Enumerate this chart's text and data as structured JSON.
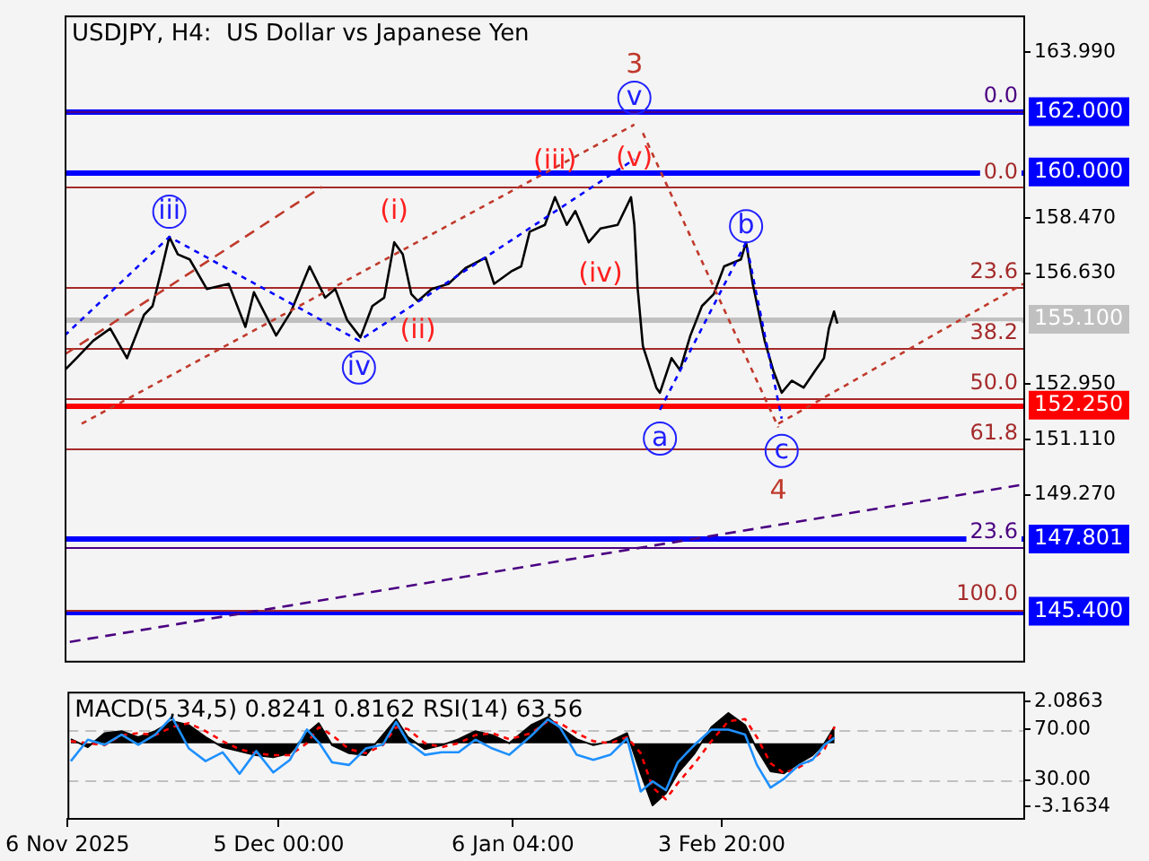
{
  "chart_data": [
    {
      "type": "line",
      "title": "USDJPY, H4:  US Dollar vs Japanese Yen",
      "xlim": [
        "2025-11-06T00:00",
        "2026-03-17T06:00"
      ],
      "ylim": [
        143.75,
        165.2
      ],
      "yticks": [
        {
          "value": 163.99,
          "label": "163.990"
        },
        {
          "value": 158.47,
          "label": "158.470"
        },
        {
          "value": 156.63,
          "label": "156.630"
        },
        {
          "value": 152.95,
          "label": "152.950"
        },
        {
          "value": 151.11,
          "label": "151.110"
        },
        {
          "value": 149.27,
          "label": "149.270"
        }
      ],
      "tick_labels": "y",
      "grid": false,
      "legend": false,
      "marker": "none",
      "series": [
        {
          "color": "#000000",
          "x": [
            "2025-11-06T00:00",
            "2025-11-07T15:00",
            "2025-11-09T22:00",
            "2025-11-12T06:00",
            "2025-11-14T13:00",
            "2025-11-16T21:00",
            "2025-11-18T01:00",
            "2025-11-19T05:00",
            "2025-11-20T08:00",
            "2025-11-21T12:00",
            "2025-11-23T03:00",
            "2025-11-25T11:00",
            "2025-11-28T11:00",
            "2025-11-30T18:00",
            "2025-12-01T22:00",
            "2025-12-04T23:00",
            "2025-12-07T00:00",
            "2025-12-09T13:00",
            "2025-12-11T16:00",
            "2025-12-13T01:00",
            "2025-12-14T16:00",
            "2025-12-16T12:00",
            "2025-12-18T03:00",
            "2025-12-19T18:00",
            "2025-12-21T03:00",
            "2025-12-22T07:00",
            "2025-12-23T11:00",
            "2025-12-24T09:00",
            "2025-12-26T06:00",
            "2025-12-28T13:00",
            "2025-12-30T21:00",
            "2026-01-02T15:00",
            "2026-01-03T19:00",
            "2026-01-06T03:00",
            "2026-01-07T12:00",
            "2026-01-08T16:00",
            "2026-01-10T18:00",
            "2026-01-12T03:00",
            "2026-01-13T18:00",
            "2026-01-14T22:00",
            "2026-01-16T18:00",
            "2026-01-18T09:00",
            "2026-01-20T17:00",
            "2026-01-22T13:00",
            "2026-01-23T00:00",
            "2026-01-23T11:00",
            "2026-01-24T04:00",
            "2026-01-26T00:00",
            "2026-01-26T12:00",
            "2026-01-28T02:00",
            "2026-01-29T06:00",
            "2026-01-30T16:00",
            "2026-02-01T06:00",
            "2026-02-02T21:00",
            "2026-02-04T07:00",
            "2026-02-06T14:00",
            "2026-02-07T07:00",
            "2026-02-08T05:00",
            "2026-02-09T20:00",
            "2026-02-11T00:00",
            "2026-02-12T04:00",
            "2026-02-13T13:00",
            "2026-02-15T04:00",
            "2026-02-16T19:00",
            "2026-02-17T23:00",
            "2026-02-18T15:00",
            "2026-02-19T08:00",
            "2026-02-19T19:00"
          ],
          "values": [
            153.41,
            153.81,
            154.39,
            154.79,
            153.81,
            155.25,
            155.54,
            156.69,
            157.84,
            157.26,
            157.09,
            156.11,
            156.28,
            154.85,
            156.0,
            154.56,
            155.36,
            156.86,
            155.82,
            156.11,
            155.08,
            154.5,
            155.54,
            155.82,
            157.66,
            157.26,
            155.94,
            155.71,
            156.11,
            156.28,
            156.8,
            157.15,
            156.28,
            156.69,
            156.86,
            158.01,
            158.24,
            159.16,
            158.24,
            158.7,
            157.66,
            158.12,
            158.24,
            159.16,
            158.24,
            156.11,
            154.21,
            152.83,
            152.66,
            153.81,
            153.41,
            154.56,
            155.54,
            155.94,
            156.86,
            157.09,
            157.66,
            156.28,
            154.39,
            153.41,
            152.66,
            153.06,
            152.83,
            153.41,
            153.81,
            154.79,
            155.36,
            154.96
          ]
        },
        {
          "type": "line",
          "color": "#4b0082",
          "line_style": "dashed",
          "x": [
            "2025-11-06T17:00",
            "2026-03-17T06:00"
          ],
          "values": [
            144.38,
            149.61
          ]
        },
        {
          "type": "line",
          "color": "#c0392b",
          "line_style": "dashed",
          "x": [
            "2025-11-06T00:00",
            "2025-12-11T05:00"
          ],
          "values": [
            153.93,
            159.5
          ]
        },
        {
          "type": "line",
          "color": "#c0392b",
          "line_style": "dotted",
          "x": [
            "2025-11-08T08:00",
            "2026-01-23T00:00"
          ],
          "values": [
            151.63,
            161.57
          ]
        },
        {
          "type": "line",
          "color": "#c0392b",
          "line_style": "dotted",
          "x": [
            "2026-01-24T04:00",
            "2026-02-11T17:00"
          ],
          "values": [
            161.29,
            151.51
          ]
        },
        {
          "type": "line",
          "color": "#c0392b",
          "line_style": "dotted",
          "x": [
            "2026-02-11T17:00",
            "2026-03-17T06:00"
          ],
          "values": [
            151.63,
            156.28
          ]
        },
        {
          "type": "line",
          "color": "#0000ff",
          "line_style": "dotted",
          "x": [
            "2025-11-06T00:00",
            "2025-11-20T08:00",
            "2025-12-16T07:00",
            "2026-01-23T00:00"
          ],
          "values": [
            154.56,
            157.84,
            154.39,
            160.42
          ]
        },
        {
          "type": "line",
          "color": "#0000ff",
          "line_style": "dotted",
          "x": [
            "2026-01-26T12:00",
            "2026-02-07T07:00",
            "2026-02-12T04:00"
          ],
          "values": [
            152.09,
            157.66,
            151.8
          ]
        }
      ],
      "ref_lines": [
        {
          "axis": "y",
          "value": 162.0,
          "label": "162.000",
          "color": "#0000ff"
        },
        {
          "axis": "y",
          "value": 160.0,
          "label": "160.000",
          "color": "#0000ff"
        },
        {
          "axis": "y",
          "value": 155.1,
          "label": "155.100",
          "color": "#c0c0c0"
        },
        {
          "axis": "y",
          "value": 152.25,
          "label": "152.250",
          "color": "#ff0000"
        },
        {
          "axis": "y",
          "value": 147.801,
          "label": "147.801",
          "color": "#0000ff"
        },
        {
          "axis": "y",
          "value": 145.4,
          "label": "145.400",
          "color": "#0000ff"
        },
        {
          "axis": "y",
          "value": 159.5,
          "color": "#a52a2a"
        },
        {
          "axis": "y",
          "value": 156.19,
          "color": "#a52a2a"
        },
        {
          "axis": "y",
          "value": 154.14,
          "color": "#a52a2a"
        },
        {
          "axis": "y",
          "value": 152.49,
          "color": "#a52a2a"
        },
        {
          "axis": "y",
          "value": 150.83,
          "color": "#a52a2a"
        },
        {
          "axis": "y",
          "value": 145.47,
          "color": "#a52a2a"
        },
        {
          "axis": "y",
          "value": 162.03,
          "color": "#4b0082"
        },
        {
          "axis": "y",
          "value": 147.54,
          "color": "#4b0082"
        }
      ],
      "annotations": [
        {
          "text": "iii",
          "x": "2025-11-20T08:00",
          "y": 157.84
        },
        {
          "text": "iv",
          "x": "2025-12-16T07:00",
          "y": 154.39
        },
        {
          "text": "v",
          "x": "2026-01-23T00:00",
          "y": 161.57
        },
        {
          "text": "a",
          "x": "2026-01-26T12:00",
          "y": 152.09
        },
        {
          "text": "b",
          "x": "2026-02-07T07:00",
          "y": 157.66
        },
        {
          "text": "c",
          "x": "2026-02-12T04:00",
          "y": 151.8
        },
        {
          "text": "(i)",
          "x": "2025-12-21T03:00",
          "y": 157.66
        },
        {
          "text": "(ii)",
          "x": "2025-12-24T09:00",
          "y": 155.71
        },
        {
          "text": "(iii)",
          "x": "2026-01-12T03:00",
          "y": 159.16
        },
        {
          "text": "(iv)",
          "x": "2026-01-18T09:00",
          "y": 158.12
        },
        {
          "text": "(v)",
          "x": "2026-01-23T00:00",
          "y": 160.42
        },
        {
          "text": "3",
          "x": "2026-01-23T00:00",
          "y": 161.57
        },
        {
          "text": "4",
          "x": "2026-02-11T17:00",
          "y": 151.51
        },
        {
          "text": "0.0",
          "x": "2026-03-17T06:00",
          "y": 159.5
        },
        {
          "text": "23.6",
          "x": "2026-03-17T06:00",
          "y": 156.19
        },
        {
          "text": "38.2",
          "x": "2026-03-17T06:00",
          "y": 154.14
        },
        {
          "text": "50.0",
          "x": "2026-03-17T06:00",
          "y": 152.49
        },
        {
          "text": "61.8",
          "x": "2026-03-17T06:00",
          "y": 150.83
        },
        {
          "text": "100.0",
          "x": "2026-03-17T06:00",
          "y": 145.47
        },
        {
          "text": "0.0",
          "x": "2026-03-17T06:00",
          "y": 162.03
        },
        {
          "text": "23.6",
          "x": "2026-03-17T06:00",
          "y": 147.54
        }
      ]
    },
    {
      "type": "line",
      "title": "MACD(5,34,5) 0.8241 0.8162 RSI(14) 63.56",
      "xlim": [
        "2025-11-06T00:00",
        "2026-03-17T06:00"
      ],
      "xticks": [
        {
          "value": "2025-11-06T00:00",
          "label": "6 Nov 2025"
        },
        {
          "value": "2025-12-05T00:00",
          "label": "5 Dec 00:00"
        },
        {
          "value": "2026-01-06T04:00",
          "label": "6 Jan 04:00"
        },
        {
          "value": "2026-02-03T20:00",
          "label": "3 Feb 20:00"
        }
      ],
      "ylim": [
        -3.73,
        2.57
      ],
      "yticks": [
        2.0863,
        -3.1634
      ],
      "y2lim": [
        0,
        100
      ],
      "y2ticks": [
        {
          "value": 70,
          "label": "70.00"
        },
        {
          "value": 30,
          "label": "30.00"
        }
      ],
      "grid": false,
      "legend": false,
      "marker": "none",
      "series": [
        {
          "type": "area",
          "color": "#000000",
          "x": [
            "2025-11-06T11:00",
            "2025-11-08T19:00",
            "2025-11-11T02:00",
            "2025-11-13T10:00",
            "2025-11-15T17:00",
            "2025-11-18T01:00",
            "2025-11-20T08:00",
            "2025-11-22T16:00",
            "2025-11-24T23:00",
            "2025-11-27T07:00",
            "2025-11-29T15:00",
            "2025-12-01T22:00",
            "2025-12-04T06:00",
            "2025-12-06T13:00",
            "2025-12-08T21:00",
            "2025-12-10T12:00",
            "2025-12-12T08:00",
            "2025-12-14T16:00",
            "2025-12-16T23:00",
            "2025-12-19T07:00",
            "2025-12-21T03:00",
            "2025-12-22T18:00",
            "2025-12-25T02:00",
            "2025-12-27T09:00",
            "2025-12-29T17:00",
            "2026-01-01T00:00",
            "2026-01-03T08:00",
            "2026-01-05T16:00",
            "2026-01-08T16:00",
            "2026-01-10T23:00",
            "2026-01-12T14:00",
            "2026-01-14T22:00",
            "2026-01-17T05:00",
            "2026-01-19T13:00",
            "2026-01-21T20:00",
            "2026-01-23T17:00",
            "2026-01-25T08:00",
            "2026-01-27T04:00",
            "2026-01-28T19:00",
            "2026-01-31T03:00",
            "2026-02-02T10:00",
            "2026-02-04T18:00",
            "2026-02-07T01:00",
            "2026-02-08T16:00",
            "2026-02-10T13:00",
            "2026-02-12T09:00",
            "2026-02-14T11:00",
            "2026-02-16T07:00",
            "2026-02-17T23:00",
            "2026-02-19T08:00"
          ],
          "values": [
            0.2,
            -0.2,
            0.5,
            0.6,
            0.3,
            0.6,
            1.1,
            0.9,
            0.3,
            -0.2,
            -0.4,
            -0.6,
            -0.7,
            -0.5,
            0.5,
            1.0,
            -0.1,
            -0.5,
            -0.6,
            0.4,
            1.2,
            0.3,
            -0.3,
            -0.1,
            0.2,
            0.6,
            0.4,
            0.0,
            0.9,
            1.3,
            0.8,
            0.2,
            -0.1,
            0.1,
            0.5,
            -1.5,
            -3.1,
            -2.5,
            -1.5,
            -0.5,
            0.8,
            1.5,
            0.9,
            -0.3,
            -1.4,
            -1.5,
            -1.0,
            -0.6,
            0.0,
            0.8241
          ]
        },
        {
          "color": "#ff0000",
          "line_style": "dotted",
          "x": [
            "2025-11-06T11:00",
            "2025-11-08T19:00",
            "2025-11-11T02:00",
            "2025-11-13T10:00",
            "2025-11-15T17:00",
            "2025-11-18T01:00",
            "2025-11-20T08:00",
            "2025-11-22T16:00",
            "2025-11-24T23:00",
            "2025-11-27T07:00",
            "2025-11-29T15:00",
            "2025-12-01T22:00",
            "2025-12-04T06:00",
            "2025-12-06T13:00",
            "2025-12-08T21:00",
            "2025-12-10T12:00",
            "2025-12-12T08:00",
            "2025-12-14T16:00",
            "2025-12-16T23:00",
            "2025-12-19T07:00",
            "2025-12-21T03:00",
            "2025-12-22T18:00",
            "2025-12-25T02:00",
            "2025-12-27T09:00",
            "2025-12-29T17:00",
            "2026-01-01T00:00",
            "2026-01-03T08:00",
            "2026-01-05T16:00",
            "2026-01-08T16:00",
            "2026-01-10T23:00",
            "2026-01-12T14:00",
            "2026-01-14T22:00",
            "2026-01-17T05:00",
            "2026-01-19T13:00",
            "2026-01-21T20:00",
            "2026-01-23T17:00",
            "2026-01-25T08:00",
            "2026-01-27T04:00",
            "2026-01-28T19:00",
            "2026-01-31T03:00",
            "2026-02-02T10:00",
            "2026-02-04T18:00",
            "2026-02-07T01:00",
            "2026-02-08T16:00",
            "2026-02-10T13:00",
            "2026-02-12T09:00",
            "2026-02-14T11:00",
            "2026-02-16T07:00",
            "2026-02-17T23:00",
            "2026-02-19T08:00"
          ],
          "values": [
            0.1,
            0.0,
            -0.1,
            0.4,
            0.5,
            0.4,
            0.8,
            1.0,
            0.6,
            0.1,
            -0.3,
            -0.5,
            -0.6,
            -0.6,
            0.0,
            0.8,
            0.4,
            -0.3,
            -0.5,
            -0.1,
            0.8,
            0.7,
            0.0,
            -0.2,
            0.0,
            0.4,
            0.5,
            0.2,
            0.5,
            1.1,
            1.0,
            0.5,
            0.1,
            0.0,
            0.3,
            -0.5,
            -2.2,
            -2.8,
            -2.0,
            -1.0,
            0.1,
            1.1,
            1.2,
            0.3,
            -1.0,
            -1.5,
            -1.2,
            -0.8,
            -0.3,
            0.8162
          ]
        },
        {
          "type": "line",
          "color": "#1e90ff",
          "axis": "y2",
          "x": [
            "2025-11-06T11:00",
            "2025-11-08T19:00",
            "2025-11-11T02:00",
            "2025-11-13T10:00",
            "2025-11-15T17:00",
            "2025-11-18T01:00",
            "2025-11-20T08:00",
            "2025-11-22T16:00",
            "2025-11-24T23:00",
            "2025-11-27T07:00",
            "2025-11-29T15:00",
            "2025-12-01T22:00",
            "2025-12-04T06:00",
            "2025-12-06T13:00",
            "2025-12-08T21:00",
            "2025-12-10T12:00",
            "2025-12-12T08:00",
            "2025-12-14T16:00",
            "2025-12-16T23:00",
            "2025-12-19T07:00",
            "2025-12-21T03:00",
            "2025-12-22T18:00",
            "2025-12-25T02:00",
            "2025-12-27T09:00",
            "2025-12-29T17:00",
            "2026-01-01T00:00",
            "2026-01-03T08:00",
            "2026-01-05T16:00",
            "2026-01-08T16:00",
            "2026-01-10T23:00",
            "2026-01-12T14:00",
            "2026-01-14T22:00",
            "2026-01-17T05:00",
            "2026-01-19T13:00",
            "2026-01-21T20:00",
            "2026-01-23T17:00",
            "2026-01-25T08:00",
            "2026-01-27T04:00",
            "2026-01-28T19:00",
            "2026-01-31T03:00",
            "2026-02-02T10:00",
            "2026-02-04T18:00",
            "2026-02-07T01:00",
            "2026-02-08T16:00",
            "2026-02-10T13:00",
            "2026-02-12T09:00",
            "2026-02-14T11:00",
            "2026-02-16T07:00",
            "2026-02-17T23:00",
            "2026-02-19T08:00"
          ],
          "values": [
            45,
            62,
            58,
            66,
            58,
            66,
            80,
            55,
            45,
            52,
            35,
            53,
            36,
            46,
            70,
            60,
            44,
            42,
            55,
            58,
            76,
            60,
            50,
            52,
            52,
            62,
            55,
            50,
            65,
            78,
            72,
            50,
            46,
            50,
            63,
            21,
            29,
            22,
            44,
            58,
            70,
            70,
            66,
            42,
            24,
            31,
            42,
            46,
            58,
            63.56
          ]
        }
      ],
      "ref_lines": [
        {
          "axis": "y2",
          "value": 70,
          "color": "#c0c0c0",
          "line_style": "dashed"
        },
        {
          "axis": "y2",
          "value": 30,
          "color": "#c0c0c0",
          "line_style": "dashed"
        }
      ]
    }
  ]
}
